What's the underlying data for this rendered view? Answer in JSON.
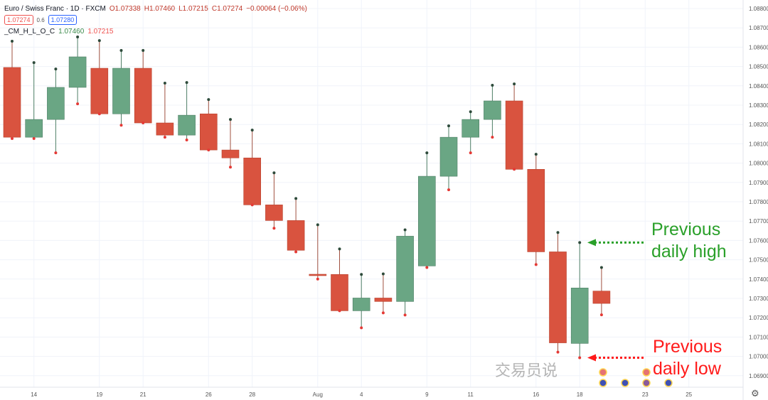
{
  "header": {
    "symbol": "Euro / Swiss Franc · 1D · FXCM",
    "open": "O1.07338",
    "high": "H1.07460",
    "low": "L1.07215",
    "close": "C1.07274",
    "change": "−0.00064 (−0.06%)",
    "bid": "1.07274",
    "spread": "0.6",
    "ask": "1.07280",
    "indicator_name": "_CM_H_L_O_C",
    "indicator_high": "1.07460",
    "indicator_low": "1.07215"
  },
  "colors": {
    "up": "#6aa684",
    "down": "#d9533f",
    "grid": "#f0f3fa",
    "high_anno": "#2aa02a",
    "low_anno": "#ff1a1a"
  },
  "annotations": {
    "high_text": [
      "Previous",
      "daily high"
    ],
    "low_text": [
      "Previous",
      "daily low"
    ]
  },
  "watermark": "交易员说",
  "chart_data": {
    "type": "candlestick",
    "title": "Euro / Swiss Franc · 1D · FXCM",
    "ylim": [
      1.0685,
      1.088
    ],
    "y_ticks": [
      "1.08800",
      "1.08700",
      "1.08600",
      "1.08500",
      "1.08400",
      "1.08300",
      "1.08200",
      "1.08100",
      "1.08000",
      "1.07900",
      "1.07800",
      "1.07700",
      "1.07600",
      "1.07500",
      "1.07400",
      "1.07300",
      "1.07200",
      "1.07100",
      "1.07000",
      "1.06900"
    ],
    "x_ticks": [
      {
        "i": 1,
        "label": "14"
      },
      {
        "i": 4,
        "label": "19"
      },
      {
        "i": 6,
        "label": "21"
      },
      {
        "i": 9,
        "label": "26"
      },
      {
        "i": 11,
        "label": "28"
      },
      {
        "i": 14,
        "label": "Aug"
      },
      {
        "i": 16,
        "label": "4"
      },
      {
        "i": 19,
        "label": "9"
      },
      {
        "i": 21,
        "label": "11"
      },
      {
        "i": 24,
        "label": "16"
      },
      {
        "i": 26,
        "label": "18"
      },
      {
        "i": 29,
        "label": "23"
      },
      {
        "i": 31,
        "label": "25"
      }
    ],
    "candles": [
      {
        "o": 1.08495,
        "h": 1.08631,
        "l": 1.08127,
        "c": 1.08134
      },
      {
        "o": 1.08134,
        "h": 1.0852,
        "l": 1.08127,
        "c": 1.08226
      },
      {
        "o": 1.08226,
        "h": 1.08487,
        "l": 1.08053,
        "c": 1.08392
      },
      {
        "o": 1.08392,
        "h": 1.08653,
        "l": 1.08307,
        "c": 1.0855
      },
      {
        "o": 1.08491,
        "h": 1.08634,
        "l": 1.08255,
        "c": 1.08255
      },
      {
        "o": 1.08255,
        "h": 1.08583,
        "l": 1.08196,
        "c": 1.08491
      },
      {
        "o": 1.08491,
        "h": 1.08583,
        "l": 1.08208,
        "c": 1.08208
      },
      {
        "o": 1.08208,
        "h": 1.08414,
        "l": 1.08134,
        "c": 1.08145
      },
      {
        "o": 1.08145,
        "h": 1.08417,
        "l": 1.0812,
        "c": 1.08248
      },
      {
        "o": 1.08255,
        "h": 1.08329,
        "l": 1.08068,
        "c": 1.08068
      },
      {
        "o": 1.08068,
        "h": 1.08226,
        "l": 1.07979,
        "c": 1.08027
      },
      {
        "o": 1.08027,
        "h": 1.08171,
        "l": 1.07784,
        "c": 1.07784
      },
      {
        "o": 1.07784,
        "h": 1.0795,
        "l": 1.07663,
        "c": 1.07703
      },
      {
        "o": 1.07703,
        "h": 1.07817,
        "l": 1.07541,
        "c": 1.07549
      },
      {
        "o": 1.07425,
        "h": 1.07681,
        "l": 1.074,
        "c": 1.07418
      },
      {
        "o": 1.07424,
        "h": 1.07556,
        "l": 1.07236,
        "c": 1.07236
      },
      {
        "o": 1.07236,
        "h": 1.07424,
        "l": 1.07148,
        "c": 1.07302
      },
      {
        "o": 1.07302,
        "h": 1.07427,
        "l": 1.07225,
        "c": 1.07284
      },
      {
        "o": 1.07284,
        "h": 1.07655,
        "l": 1.07214,
        "c": 1.07622
      },
      {
        "o": 1.07468,
        "h": 1.08053,
        "l": 1.0746,
        "c": 1.07932
      },
      {
        "o": 1.07932,
        "h": 1.08193,
        "l": 1.07862,
        "c": 1.08134
      },
      {
        "o": 1.08134,
        "h": 1.08266,
        "l": 1.08053,
        "c": 1.08226
      },
      {
        "o": 1.08226,
        "h": 1.08403,
        "l": 1.08134,
        "c": 1.08322
      },
      {
        "o": 1.08322,
        "h": 1.0841,
        "l": 1.07968,
        "c": 1.07968
      },
      {
        "o": 1.07968,
        "h": 1.08046,
        "l": 1.07475,
        "c": 1.07541
      },
      {
        "o": 1.07541,
        "h": 1.07641,
        "l": 1.07022,
        "c": 1.0707
      },
      {
        "o": 1.07067,
        "h": 1.07589,
        "l": 1.06993,
        "c": 1.07354
      },
      {
        "o": 1.07338,
        "h": 1.0746,
        "l": 1.07215,
        "c": 1.07274
      }
    ]
  }
}
